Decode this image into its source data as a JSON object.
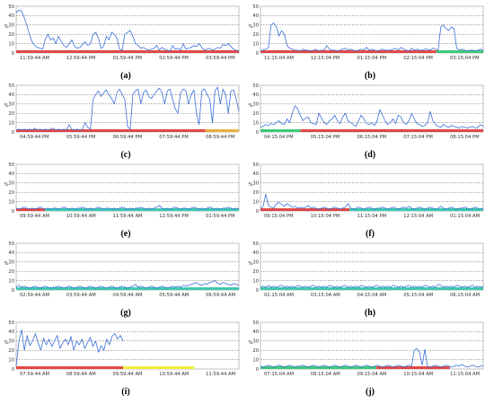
{
  "chart_data": [
    {
      "type": "line",
      "panel_label": "(a)",
      "ylabel": "%",
      "ylim": [
        0,
        50
      ],
      "yticks": [
        "0",
        "10",
        "20",
        "30",
        "40",
        "50"
      ],
      "x_ticks": [
        "11:59:44 AM",
        "12:59:44 PM",
        "01:59:44 PM",
        "02:59:44 PM",
        "03:59:44 PM"
      ],
      "grid": true,
      "series": [
        {
          "color": "#3a6fd8",
          "values": [
            43,
            46,
            45,
            38,
            30,
            20,
            12,
            8,
            6,
            5,
            4,
            15,
            20,
            14,
            16,
            10,
            18,
            12,
            8,
            6,
            10,
            14,
            7,
            5,
            6,
            9,
            12,
            8,
            10,
            20,
            22,
            16,
            5,
            7,
            18,
            14,
            22,
            20,
            16,
            4,
            3,
            20,
            22,
            24,
            18,
            10,
            8,
            5,
            6,
            4,
            3,
            4,
            5,
            8,
            3,
            6,
            4,
            3,
            2,
            8,
            4,
            5,
            3,
            10,
            4,
            5,
            6,
            8,
            7,
            10,
            6,
            3,
            4,
            5,
            3,
            4,
            6,
            5,
            9,
            8,
            10,
            7,
            4,
            3,
            2
          ]
        }
      ],
      "bands": [
        {
          "from": 0,
          "to": 1,
          "color": "#e04848"
        }
      ]
    },
    {
      "type": "line",
      "panel_label": "(b)",
      "ylabel": "%",
      "ylim": [
        0,
        50
      ],
      "yticks": [
        "0",
        "10",
        "20",
        "30",
        "40",
        "50"
      ],
      "x_ticks": [
        "11:15:04 AM",
        "12:15:04 PM",
        "01:15:04 PM",
        "02:15:04 PM",
        "03:15:04 PM"
      ],
      "grid": true,
      "series": [
        {
          "color": "#3a6fd8",
          "values": [
            2,
            3,
            4,
            6,
            30,
            32,
            28,
            18,
            24,
            20,
            8,
            5,
            4,
            3,
            3,
            2,
            4,
            3,
            3,
            2,
            3,
            4,
            2,
            3,
            3,
            8,
            4,
            3,
            3,
            2,
            3,
            4,
            5,
            3,
            4,
            3,
            2,
            3,
            4,
            3,
            6,
            3,
            4,
            3,
            2,
            3,
            4,
            3,
            3,
            3,
            4,
            5,
            3,
            6,
            4,
            3,
            2,
            5,
            3,
            4,
            3,
            3,
            4,
            4,
            3,
            5,
            4,
            3,
            28,
            30,
            26,
            24,
            28,
            26,
            5,
            3,
            4,
            3,
            2,
            3,
            3,
            2,
            3,
            4,
            3
          ]
        }
      ],
      "bands": [
        {
          "from": 0,
          "to": 0.79,
          "color": "#e04848"
        },
        {
          "from": 0.79,
          "to": 1,
          "color": "#3ec97a"
        }
      ]
    },
    {
      "type": "line",
      "panel_label": "(c)",
      "ylabel": "%",
      "ylim": [
        0,
        50
      ],
      "yticks": [
        "0",
        "10",
        "20",
        "30",
        "40",
        "50"
      ],
      "x_ticks": [
        "04:59:44 PM",
        "05:59:44 PM",
        "06:59:44 PM",
        "07:59:44 PM",
        "08:59:44 PM"
      ],
      "grid": true,
      "series": [
        {
          "color": "#3a6fd8",
          "values": [
            2,
            3,
            2,
            3,
            2,
            3,
            2,
            4,
            2,
            3,
            2,
            3,
            2,
            3,
            4,
            2,
            3,
            2,
            3,
            2,
            8,
            3,
            2,
            3,
            2,
            3,
            10,
            5,
            3,
            35,
            40,
            44,
            38,
            42,
            45,
            40,
            36,
            30,
            42,
            46,
            40,
            35,
            6,
            3,
            40,
            44,
            46,
            30,
            42,
            45,
            38,
            36,
            40,
            44,
            47,
            42,
            30,
            44,
            46,
            35,
            25,
            20,
            42,
            46,
            44,
            30,
            40,
            45,
            20,
            8,
            44,
            46,
            40,
            35,
            10,
            44,
            48,
            30,
            46,
            40,
            20,
            44,
            45,
            35,
            22
          ]
        }
      ],
      "bands": [
        {
          "from": 0,
          "to": 0.55,
          "color": "#e04848"
        },
        {
          "from": 0.55,
          "to": 0.85,
          "color": "#e04848"
        },
        {
          "from": 0.85,
          "to": 1,
          "color": "#e8b040"
        }
      ]
    },
    {
      "type": "line",
      "panel_label": "(d)",
      "ylabel": "%",
      "ylim": [
        0,
        50
      ],
      "yticks": [
        "0",
        "10",
        "20",
        "30",
        "40",
        "50"
      ],
      "x_ticks": [
        "04:15:04 PM",
        "05:15:04 PM",
        "06:15:04 PM",
        "07:15:04 PM",
        "08:15:04 PM"
      ],
      "grid": true,
      "series": [
        {
          "color": "#3a6fd8",
          "values": [
            5,
            6,
            8,
            7,
            9,
            8,
            10,
            12,
            9,
            8,
            14,
            10,
            20,
            28,
            25,
            18,
            12,
            15,
            16,
            10,
            9,
            8,
            20,
            15,
            10,
            8,
            12,
            14,
            18,
            12,
            9,
            16,
            20,
            12,
            10,
            8,
            6,
            12,
            18,
            14,
            9,
            8,
            10,
            7,
            12,
            24,
            18,
            12,
            8,
            10,
            14,
            9,
            18,
            16,
            10,
            8,
            12,
            20,
            14,
            9,
            8,
            6,
            7,
            10,
            22,
            12,
            8,
            6,
            5,
            8,
            6,
            5,
            7,
            6,
            5,
            4,
            6,
            5,
            4,
            5,
            6,
            4,
            5,
            8,
            6
          ]
        }
      ],
      "bands": [
        {
          "from": 0,
          "to": 0.18,
          "color": "#3ec97a"
        },
        {
          "from": 0.18,
          "to": 1,
          "color": "#e04848"
        }
      ]
    },
    {
      "type": "line",
      "panel_label": "(e)",
      "ylabel": "%",
      "ylim": [
        0,
        50
      ],
      "yticks": [
        "0",
        "10",
        "20",
        "30",
        "40",
        "50"
      ],
      "x_ticks": [
        "09:59:44 AM",
        "10:59:44 AM",
        "11:59:44 AM",
        "12:59:44 PM",
        "01:59:44 PM"
      ],
      "grid": true,
      "series": [
        {
          "color": "#3a6fd8",
          "values": [
            3,
            2,
            3,
            4,
            3,
            2,
            3,
            2,
            3,
            4,
            3,
            2,
            3,
            2,
            3,
            3,
            2,
            3,
            4,
            3,
            2,
            3,
            2,
            3,
            3,
            4,
            3,
            2,
            3,
            2,
            3,
            4,
            3,
            2,
            3,
            3,
            2,
            3,
            2,
            3,
            4,
            3,
            2,
            3,
            2,
            3,
            3,
            4,
            3,
            2,
            3,
            2,
            3,
            4,
            6,
            3,
            2,
            3,
            2,
            3,
            4,
            3,
            2,
            3,
            3,
            2,
            3,
            4,
            3,
            2,
            3,
            2,
            3,
            4,
            3,
            2,
            3,
            2,
            3,
            3,
            4,
            3,
            2,
            3,
            2
          ]
        }
      ],
      "bands": [
        {
          "from": 0,
          "to": 0.13,
          "color": "#e04848"
        },
        {
          "from": 0.13,
          "to": 1,
          "color": "#3ec9b0"
        }
      ]
    },
    {
      "type": "line",
      "panel_label": "(f)",
      "ylabel": "%",
      "ylim": [
        0,
        50
      ],
      "yticks": [
        "0",
        "10",
        "20",
        "30",
        "40",
        "50"
      ],
      "x_ticks": [
        "09:15:04 PM",
        "10:15:04 PM",
        "11:15:04 PM",
        "12:15:04 AM",
        "01:15:04 AM"
      ],
      "grid": true,
      "series": [
        {
          "color": "#3a6fd8",
          "values": [
            3,
            5,
            18,
            6,
            4,
            3,
            8,
            9,
            7,
            5,
            8,
            6,
            4,
            5,
            3,
            4,
            3,
            4,
            6,
            3,
            4,
            3,
            2,
            3,
            4,
            3,
            2,
            3,
            4,
            3,
            2,
            3,
            4,
            8,
            3,
            2,
            3,
            4,
            3,
            2,
            3,
            4,
            3,
            2,
            3,
            3,
            4,
            3,
            2,
            3,
            4,
            3,
            2,
            3,
            4,
            3,
            5,
            3,
            2,
            3,
            4,
            3,
            2,
            3,
            4,
            3,
            2,
            3,
            5,
            3,
            2,
            3,
            4,
            3,
            2,
            3,
            3,
            4,
            3,
            2,
            3,
            4,
            3,
            2,
            3
          ]
        }
      ],
      "bands": [
        {
          "from": 0,
          "to": 0.4,
          "color": "#e04848"
        },
        {
          "from": 0.4,
          "to": 1,
          "color": "#3ec9b0"
        }
      ]
    },
    {
      "type": "line",
      "panel_label": "(g)",
      "ylabel": "%",
      "ylim": [
        0,
        50
      ],
      "yticks": [
        "0",
        "10",
        "20",
        "30",
        "40",
        "50"
      ],
      "x_ticks": [
        "02:59:44 AM",
        "03:59:44 AM",
        "04:59:44 AM",
        "05:59:44 AM",
        "06:59:44 AM"
      ],
      "grid": true,
      "series": [
        {
          "color": "#3a6fd8",
          "values": [
            3,
            5,
            3,
            4,
            3,
            2,
            3,
            4,
            3,
            2,
            3,
            4,
            3,
            2,
            3,
            3,
            4,
            3,
            2,
            3,
            4,
            3,
            2,
            3,
            4,
            3,
            2,
            3,
            4,
            3,
            2,
            3,
            4,
            3,
            2,
            3,
            4,
            3,
            2,
            3,
            4,
            3,
            2,
            3,
            4,
            6,
            3,
            4,
            3,
            2,
            3,
            4,
            3,
            2,
            3,
            4,
            3,
            2,
            3,
            4,
            3,
            4,
            3,
            5,
            4,
            5,
            6,
            7,
            8,
            6,
            5,
            7,
            6,
            8,
            9,
            10,
            7,
            6,
            8,
            7,
            6,
            5,
            7,
            6,
            5
          ]
        }
      ],
      "bands": [
        {
          "from": 0,
          "to": 1,
          "color": "#3ec9b0"
        }
      ]
    },
    {
      "type": "line",
      "panel_label": "(h)",
      "ylabel": "%",
      "ylim": [
        0,
        50
      ],
      "yticks": [
        "0",
        "10",
        "20",
        "30",
        "40",
        "50"
      ],
      "x_ticks": [
        "02:15:04 AM",
        "03:15:04 AM",
        "04:15:04 AM",
        "05:15:04 AM",
        "06:15:04 AM"
      ],
      "grid": true,
      "series": [
        {
          "color": "#3a6fd8",
          "values": [
            3,
            4,
            3,
            5,
            3,
            4,
            3,
            4,
            5,
            3,
            4,
            3,
            4,
            3,
            5,
            4,
            3,
            4,
            3,
            4,
            5,
            3,
            4,
            3,
            4,
            3,
            5,
            4,
            3,
            4,
            3,
            4,
            5,
            3,
            4,
            3,
            4,
            3,
            5,
            4,
            3,
            4,
            3,
            4,
            5,
            3,
            4,
            3,
            4,
            3,
            5,
            4,
            3,
            4,
            3,
            4,
            5,
            3,
            4,
            3,
            4,
            3,
            5,
            4,
            3,
            4,
            3,
            6,
            5,
            3,
            4,
            3,
            4,
            3,
            5,
            4,
            3,
            4,
            3,
            4,
            5,
            3,
            4,
            3,
            4
          ]
        }
      ],
      "bands": [
        {
          "from": 0,
          "to": 1,
          "color": "#3ec9b0"
        }
      ]
    },
    {
      "type": "line",
      "panel_label": "(i)",
      "ylabel": "%",
      "ylim": [
        0,
        50
      ],
      "yticks": [
        "0",
        "10",
        "20",
        "30",
        "40",
        "50"
      ],
      "x_ticks": [
        "07:59:44 AM",
        "08:59:44 AM",
        "09:59:44 AM",
        "10:59:44 AM",
        "11:59:44 AM"
      ],
      "grid": true,
      "series": [
        {
          "color": "#3a6fd8",
          "values": [
            3,
            30,
            42,
            20,
            36,
            25,
            30,
            38,
            28,
            20,
            33,
            26,
            32,
            24,
            30,
            36,
            22,
            28,
            32,
            26,
            35,
            20,
            30,
            26,
            32,
            22,
            28,
            34,
            24,
            30,
            18,
            25,
            20,
            32,
            26,
            35,
            38,
            32,
            36,
            30
          ]
        }
      ],
      "bands": [
        {
          "from": 0,
          "to": 0.48,
          "color": "#e04848"
        },
        {
          "from": 0.48,
          "to": 0.8,
          "color": "#f0f040"
        }
      ]
    },
    {
      "type": "line",
      "panel_label": "(j)",
      "ylabel": "%",
      "ylim": [
        0,
        50
      ],
      "yticks": [
        "0",
        "10",
        "20",
        "30",
        "40",
        "50"
      ],
      "x_ticks": [
        "07:15:04 AM",
        "08:15:04 AM",
        "09:15:04 AM",
        "10:15:04 AM",
        "11:15:04 AM"
      ],
      "grid": true,
      "series": [
        {
          "color": "#3a6fd8",
          "values": [
            3,
            2,
            3,
            4,
            3,
            2,
            3,
            4,
            3,
            2,
            3,
            4,
            3,
            2,
            3,
            3,
            4,
            3,
            2,
            3,
            4,
            3,
            2,
            3,
            4,
            3,
            2,
            3,
            4,
            3,
            2,
            3,
            4,
            3,
            2,
            3,
            4,
            3,
            2,
            3,
            4,
            3,
            2,
            3,
            4,
            3,
            2,
            3,
            4,
            3,
            2,
            3,
            4,
            3,
            2,
            3,
            4,
            3,
            20,
            22,
            18,
            4,
            21,
            3,
            2,
            3,
            4,
            3,
            2,
            3,
            4,
            3,
            2,
            3,
            4,
            3,
            5,
            3,
            2,
            3,
            4,
            3,
            2,
            3,
            4
          ]
        }
      ],
      "bands": [
        {
          "from": 0,
          "to": 0.52,
          "color": "#3ec97a"
        },
        {
          "from": 0.52,
          "to": 0.85,
          "color": "#e04848"
        }
      ]
    }
  ]
}
